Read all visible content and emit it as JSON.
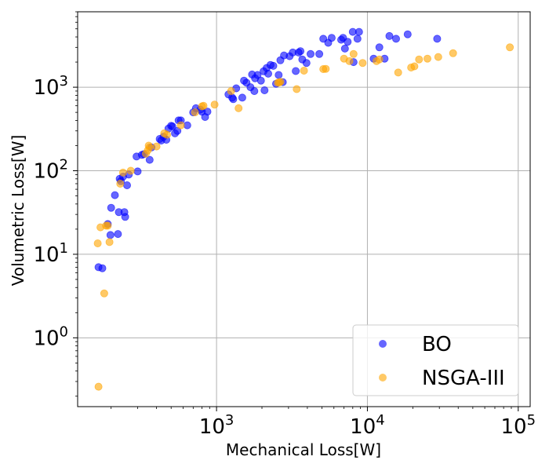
{
  "chart_data": {
    "type": "scatter",
    "title": "",
    "xlabel": "Mechanical Loss[W]",
    "ylabel": "Volumetric Loss[W]",
    "xscale": "log",
    "yscale": "log",
    "xlim": [
      120,
      120000
    ],
    "ylim": [
      0.15,
      8000
    ],
    "grid": true,
    "legend_position": "bottom-right",
    "x_ticks": [
      {
        "label_base": "10",
        "label_exp": "3",
        "value": 1000
      },
      {
        "label_base": "10",
        "label_exp": "4",
        "value": 10000
      },
      {
        "label_base": "10",
        "label_exp": "5",
        "value": 100000
      }
    ],
    "y_ticks": [
      {
        "label_base": "10",
        "label_exp": "0",
        "value": 1
      },
      {
        "label_base": "10",
        "label_exp": "1",
        "value": 10
      },
      {
        "label_base": "10",
        "label_exp": "2",
        "value": 100
      },
      {
        "label_base": "10",
        "label_exp": "3",
        "value": 1000
      }
    ],
    "series": [
      {
        "name": "BO",
        "color": "#0000ff",
        "alpha": 0.6,
        "points": [
          [
            165,
            7.0
          ],
          [
            175,
            6.8
          ],
          [
            190,
            23
          ],
          [
            198,
            17
          ],
          [
            200,
            36
          ],
          [
            212,
            51
          ],
          [
            222,
            17.5
          ],
          [
            225,
            32
          ],
          [
            228,
            80
          ],
          [
            232,
            75
          ],
          [
            240,
            85
          ],
          [
            245,
            32
          ],
          [
            248,
            28
          ],
          [
            255,
            67
          ],
          [
            262,
            90
          ],
          [
            295,
            148
          ],
          [
            300,
            98
          ],
          [
            320,
            155
          ],
          [
            330,
            158
          ],
          [
            360,
            135
          ],
          [
            370,
            190
          ],
          [
            420,
            240
          ],
          [
            430,
            230
          ],
          [
            445,
            255
          ],
          [
            465,
            235
          ],
          [
            480,
            320
          ],
          [
            500,
            345
          ],
          [
            510,
            340
          ],
          [
            530,
            280
          ],
          [
            550,
            300
          ],
          [
            560,
            400
          ],
          [
            580,
            400
          ],
          [
            640,
            350
          ],
          [
            700,
            500
          ],
          [
            730,
            560
          ],
          [
            780,
            540
          ],
          [
            800,
            510
          ],
          [
            840,
            440
          ],
          [
            870,
            510
          ],
          [
            1200,
            820
          ],
          [
            1270,
            750
          ],
          [
            1290,
            720
          ],
          [
            1350,
            970
          ],
          [
            1480,
            750
          ],
          [
            1520,
            1200
          ],
          [
            1580,
            1130
          ],
          [
            1680,
            1000
          ],
          [
            1720,
            1420
          ],
          [
            1780,
            900
          ],
          [
            1800,
            1280
          ],
          [
            1870,
            1400
          ],
          [
            1970,
            1200
          ],
          [
            2050,
            1550
          ],
          [
            2080,
            920
          ],
          [
            2150,
            1700
          ],
          [
            2200,
            1450
          ],
          [
            2280,
            1850
          ],
          [
            2380,
            1800
          ],
          [
            2480,
            1100
          ],
          [
            2580,
            1400
          ],
          [
            2650,
            2100
          ],
          [
            2750,
            1150
          ],
          [
            2800,
            2400
          ],
          [
            3050,
            2350
          ],
          [
            3200,
            2600
          ],
          [
            3350,
            1560
          ],
          [
            3500,
            2600
          ],
          [
            3600,
            2700
          ],
          [
            3700,
            2150
          ],
          [
            3950,
            1950
          ],
          [
            4200,
            2500
          ],
          [
            4800,
            2500
          ],
          [
            5100,
            3800
          ],
          [
            5500,
            3400
          ],
          [
            5800,
            3900
          ],
          [
            6700,
            3700
          ],
          [
            6900,
            3900
          ],
          [
            7100,
            2900
          ],
          [
            7400,
            3500
          ],
          [
            8000,
            4600
          ],
          [
            8100,
            2000
          ],
          [
            8600,
            3800
          ],
          [
            8800,
            4600
          ],
          [
            11000,
            2200
          ],
          [
            12000,
            3000
          ],
          [
            13000,
            2200
          ],
          [
            14000,
            4100
          ],
          [
            15500,
            3800
          ],
          [
            18500,
            4300
          ],
          [
            29000,
            3800
          ]
        ]
      },
      {
        "name": "NSGA-III",
        "color": "#ffa500",
        "alpha": 0.6,
        "points": [
          [
            163,
            13.5
          ],
          [
            165,
            0.26
          ],
          [
            170,
            21
          ],
          [
            180,
            3.4
          ],
          [
            185,
            22
          ],
          [
            190,
            22
          ],
          [
            195,
            14
          ],
          [
            230,
            70
          ],
          [
            240,
            95
          ],
          [
            270,
            100
          ],
          [
            340,
            160
          ],
          [
            350,
            175
          ],
          [
            355,
            200
          ],
          [
            360,
            190
          ],
          [
            400,
            195
          ],
          [
            450,
            280
          ],
          [
            470,
            270
          ],
          [
            580,
            350
          ],
          [
            720,
            500
          ],
          [
            800,
            590
          ],
          [
            820,
            600
          ],
          [
            970,
            620
          ],
          [
            1250,
            900
          ],
          [
            1400,
            560
          ],
          [
            2550,
            1130
          ],
          [
            2600,
            1140
          ],
          [
            2650,
            1160
          ],
          [
            3400,
            950
          ],
          [
            3800,
            1580
          ],
          [
            5100,
            1650
          ],
          [
            5300,
            1660
          ],
          [
            7000,
            2200
          ],
          [
            7600,
            2050
          ],
          [
            8100,
            2500
          ],
          [
            9300,
            1950
          ],
          [
            11500,
            2050
          ],
          [
            12000,
            2150
          ],
          [
            16000,
            1500
          ],
          [
            19500,
            1720
          ],
          [
            20500,
            1780
          ],
          [
            22000,
            2150
          ],
          [
            25000,
            2200
          ],
          [
            29500,
            2300
          ],
          [
            37000,
            2550
          ],
          [
            88000,
            3000
          ]
        ]
      }
    ]
  }
}
